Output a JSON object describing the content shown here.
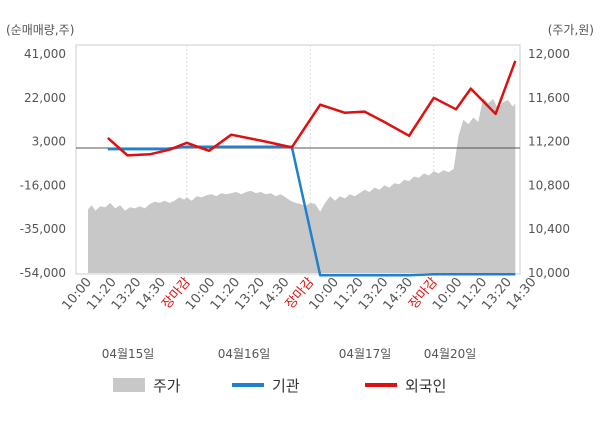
{
  "chart_data": {
    "type": "line",
    "left_unit_label": "(순매매량,주)",
    "right_unit_label": "(주가,원)",
    "left_axis": {
      "ticks": [
        "41,000",
        "22,000",
        "3,000",
        "-16,000",
        "-35,000",
        "-54,000"
      ],
      "min": -54000,
      "max": 41000
    },
    "right_axis": {
      "ticks": [
        "12,000",
        "11,600",
        "11,200",
        "10,800",
        "10,400",
        "10,000"
      ],
      "min": 10000,
      "max": 12000
    },
    "x_ticks": [
      {
        "label": "10:00",
        "red": false
      },
      {
        "label": "11:20",
        "red": false
      },
      {
        "label": "13:20",
        "red": false
      },
      {
        "label": "14:30",
        "red": false
      },
      {
        "label": "장마감",
        "red": true
      },
      {
        "label": "10:00",
        "red": false
      },
      {
        "label": "11:20",
        "red": false
      },
      {
        "label": "13:20",
        "red": false
      },
      {
        "label": "14:30",
        "red": false
      },
      {
        "label": "장마감",
        "red": true
      },
      {
        "label": "10:00",
        "red": false
      },
      {
        "label": "11:20",
        "red": false
      },
      {
        "label": "13:20",
        "red": false
      },
      {
        "label": "14:30",
        "red": false
      },
      {
        "label": "장마감",
        "red": true
      },
      {
        "label": "10:00",
        "red": false
      },
      {
        "label": "11:20",
        "red": false
      },
      {
        "label": "13:20",
        "red": false
      },
      {
        "label": "14:30",
        "red": false
      }
    ],
    "dates": [
      "04월15일",
      "04월16일",
      "04월17일",
      "04월20일"
    ],
    "series": [
      {
        "name": "주가",
        "axis": "right",
        "kind": "area",
        "color": "#c8c8c8",
        "points": [
          [
            0,
            10580
          ],
          [
            0.15,
            10620
          ],
          [
            0.3,
            10570
          ],
          [
            0.5,
            10610
          ],
          [
            0.7,
            10600
          ],
          [
            0.9,
            10640
          ],
          [
            1.1,
            10590
          ],
          [
            1.3,
            10620
          ],
          [
            1.5,
            10570
          ],
          [
            1.7,
            10600
          ],
          [
            1.9,
            10590
          ],
          [
            2.1,
            10610
          ],
          [
            2.3,
            10590
          ],
          [
            2.5,
            10630
          ],
          [
            2.7,
            10650
          ],
          [
            2.9,
            10640
          ],
          [
            3.1,
            10660
          ],
          [
            3.3,
            10640
          ],
          [
            3.5,
            10660
          ],
          [
            3.7,
            10690
          ],
          [
            3.9,
            10670
          ],
          [
            4.0,
            10690
          ],
          [
            4.2,
            10660
          ],
          [
            4.4,
            10700
          ],
          [
            4.6,
            10690
          ],
          [
            4.8,
            10710
          ],
          [
            5.0,
            10720
          ],
          [
            5.2,
            10700
          ],
          [
            5.4,
            10730
          ],
          [
            5.6,
            10720
          ],
          [
            5.8,
            10730
          ],
          [
            6.0,
            10740
          ],
          [
            6.2,
            10720
          ],
          [
            6.4,
            10740
          ],
          [
            6.6,
            10750
          ],
          [
            6.8,
            10730
          ],
          [
            7.0,
            10740
          ],
          [
            7.2,
            10720
          ],
          [
            7.4,
            10730
          ],
          [
            7.6,
            10700
          ],
          [
            7.8,
            10720
          ],
          [
            8.0,
            10690
          ],
          [
            8.2,
            10660
          ],
          [
            8.4,
            10640
          ],
          [
            8.6,
            10630
          ],
          [
            8.8,
            10610
          ],
          [
            9.0,
            10640
          ],
          [
            9.2,
            10630
          ],
          [
            9.4,
            10560
          ],
          [
            9.6,
            10640
          ],
          [
            9.8,
            10700
          ],
          [
            10.0,
            10660
          ],
          [
            10.2,
            10700
          ],
          [
            10.4,
            10680
          ],
          [
            10.6,
            10720
          ],
          [
            10.8,
            10700
          ],
          [
            11.0,
            10730
          ],
          [
            11.2,
            10760
          ],
          [
            11.4,
            10740
          ],
          [
            11.6,
            10780
          ],
          [
            11.8,
            10760
          ],
          [
            12.0,
            10800
          ],
          [
            12.2,
            10780
          ],
          [
            12.4,
            10820
          ],
          [
            12.6,
            10810
          ],
          [
            12.8,
            10850
          ],
          [
            13.0,
            10840
          ],
          [
            13.2,
            10880
          ],
          [
            13.4,
            10870
          ],
          [
            13.6,
            10910
          ],
          [
            13.8,
            10890
          ],
          [
            14.0,
            10930
          ],
          [
            14.2,
            10910
          ],
          [
            14.4,
            10940
          ],
          [
            14.6,
            10920
          ],
          [
            14.8,
            10950
          ],
          [
            15.0,
            11250
          ],
          [
            15.2,
            11400
          ],
          [
            15.4,
            11360
          ],
          [
            15.6,
            11420
          ],
          [
            15.8,
            11380
          ],
          [
            16.0,
            11600
          ],
          [
            16.2,
            11550
          ],
          [
            16.4,
            11590
          ],
          [
            16.6,
            11500
          ],
          [
            16.8,
            11560
          ],
          [
            17.0,
            11580
          ],
          [
            17.2,
            11520
          ],
          [
            17.3,
            11550
          ]
        ]
      },
      {
        "name": "기관",
        "axis": "left",
        "kind": "line",
        "color": "#2080d0",
        "points": [
          [
            0.8,
            -260
          ],
          [
            3.0,
            -260
          ],
          [
            4.0,
            800
          ],
          [
            7.6,
            800
          ],
          [
            8.25,
            800
          ],
          [
            9.4,
            -55000
          ],
          [
            10.5,
            -55000
          ],
          [
            13.0,
            -55000
          ],
          [
            14.0,
            -54500
          ],
          [
            15.0,
            -54500
          ],
          [
            16.5,
            -54500
          ],
          [
            17.3,
            -54500
          ]
        ]
      },
      {
        "name": "외국인",
        "axis": "left",
        "kind": "line",
        "color": "#e01010",
        "points": [
          [
            0.8,
            4600
          ],
          [
            1.6,
            -3000
          ],
          [
            2.5,
            -2500
          ],
          [
            3.3,
            -500
          ],
          [
            4.0,
            2500
          ],
          [
            4.9,
            -1000
          ],
          [
            5.8,
            6000
          ],
          [
            7.2,
            3000
          ],
          [
            8.25,
            500
          ],
          [
            9.4,
            19000
          ],
          [
            10.4,
            15500
          ],
          [
            11.2,
            16000
          ],
          [
            12.0,
            11500
          ],
          [
            13.0,
            5500
          ],
          [
            14.0,
            22000
          ],
          [
            14.9,
            17000
          ],
          [
            15.5,
            26000
          ],
          [
            16.5,
            15000
          ],
          [
            17.3,
            38000
          ]
        ]
      }
    ],
    "legend_position": "bottom"
  }
}
